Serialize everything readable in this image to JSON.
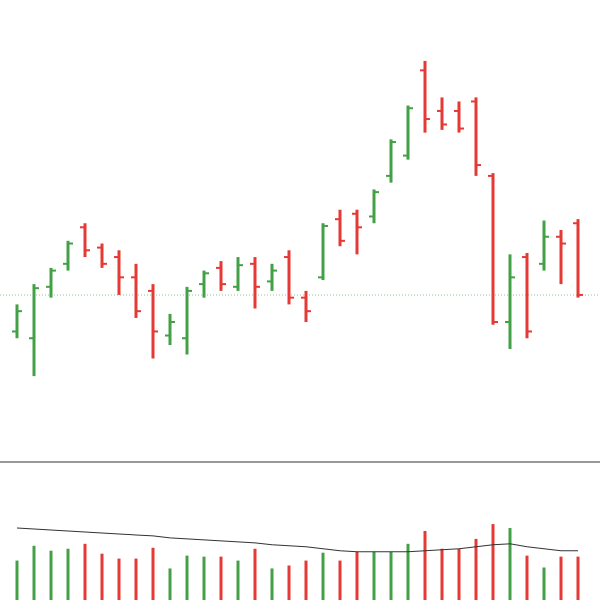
{
  "chart_data": {
    "type": "ohlc",
    "open": [
      215,
      210,
      248,
      265,
      292,
      277,
      270,
      255,
      245,
      212,
      210,
      250,
      262,
      248,
      265,
      252,
      270,
      240,
      255,
      298,
      302,
      300,
      330,
      345,
      408,
      378,
      378,
      385,
      330,
      222,
      270,
      265,
      285,
      295
    ],
    "high": [
      235,
      250,
      262,
      282,
      295,
      280,
      275,
      265,
      250,
      228,
      248,
      260,
      267,
      270,
      270,
      265,
      275,
      245,
      295,
      305,
      305,
      320,
      357,
      382,
      415,
      388,
      385,
      388,
      332,
      272,
      273,
      297,
      290,
      298
    ],
    "low": [
      210,
      182,
      240,
      260,
      270,
      262,
      242,
      225,
      195,
      205,
      198,
      240,
      245,
      245,
      232,
      245,
      235,
      222,
      253,
      278,
      272,
      295,
      325,
      342,
      362,
      364,
      362,
      330,
      220,
      202,
      210,
      260,
      250,
      240
    ],
    "close": [
      230,
      247,
      260,
      280,
      275,
      265,
      255,
      230,
      215,
      222,
      245,
      258,
      250,
      264,
      248,
      260,
      240,
      230,
      293,
      282,
      292,
      318,
      355,
      380,
      372,
      368,
      365,
      338,
      222,
      255,
      215,
      285,
      280,
      242
    ],
    "volume": [
      40,
      55,
      50,
      52,
      57,
      47,
      42,
      42,
      53,
      32,
      45,
      44,
      44,
      40,
      52,
      32,
      35,
      40,
      48,
      40,
      49,
      49,
      49,
      57,
      70,
      52,
      52,
      62,
      77,
      73,
      45,
      33,
      44,
      44
    ],
    "volume_ma": [
      73,
      72,
      71,
      70,
      69,
      68,
      67,
      66,
      65,
      63,
      62,
      61,
      60,
      59,
      58,
      56,
      55,
      54,
      52,
      50,
      49,
      49,
      49,
      49,
      50,
      51,
      52,
      54,
      56,
      57,
      54,
      52,
      50,
      50
    ],
    "ylim": [
      120,
      460
    ],
    "volume_ylim": [
      0,
      140
    ],
    "up_color": "#43a047",
    "down_color": "#e53935",
    "ma_color": "#333333"
  }
}
